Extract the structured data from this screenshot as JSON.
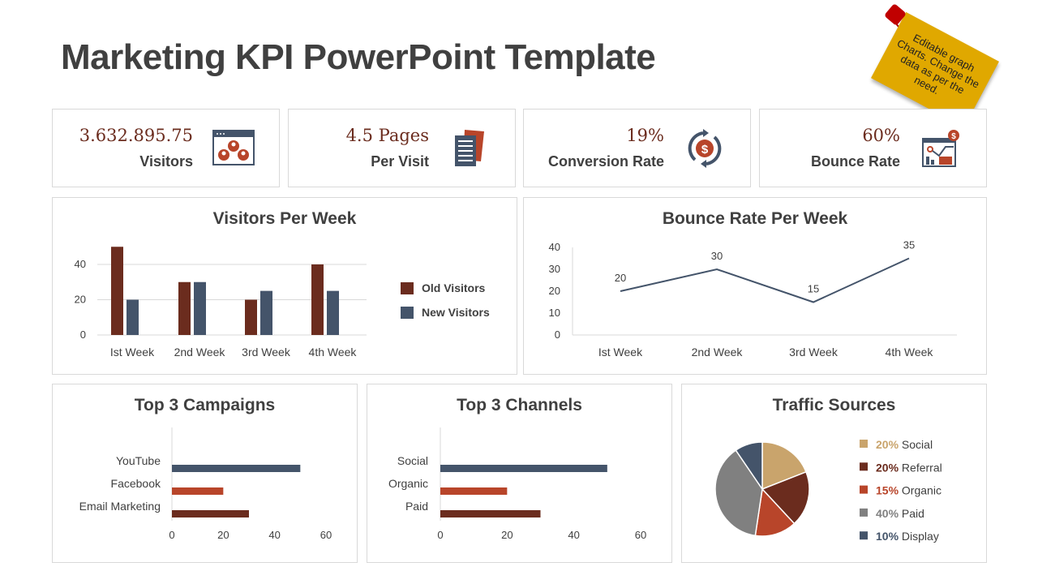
{
  "title": "Marketing KPI PowerPoint Template",
  "sticky_note": "Editable graph Charts. Change the data as per the need.",
  "kpis": [
    {
      "value": "3.632.895.75",
      "label": "Visitors",
      "icon": "visitors-browser-icon"
    },
    {
      "value": "4.5 Pages",
      "label": "Per Visit",
      "icon": "document-pages-icon"
    },
    {
      "value": "19%",
      "label": "Conversion Rate",
      "icon": "dollar-cycle-icon"
    },
    {
      "value": "60%",
      "label": "Bounce Rate",
      "icon": "analytics-dashboard-icon"
    }
  ],
  "colors": {
    "brown": "#6b2c1e",
    "navy": "#44546a",
    "orange": "#b8452a",
    "tan": "#c9a46c",
    "gray": "#808080"
  },
  "chart_data": [
    {
      "id": "visitors",
      "type": "bar",
      "title": "Visitors Per Week",
      "categories": [
        "Ist Week",
        "2nd Week",
        "3rd Week",
        "4th Week"
      ],
      "series": [
        {
          "name": "Old Visitors",
          "values": [
            50,
            30,
            20,
            40
          ],
          "color": "#6b2c1e"
        },
        {
          "name": "New Visitors",
          "values": [
            20,
            30,
            25,
            25
          ],
          "color": "#44546a"
        }
      ],
      "yticks": [
        0,
        20,
        40
      ],
      "ylim": [
        0,
        50
      ],
      "legend": "right"
    },
    {
      "id": "bounce",
      "type": "line",
      "title": "Bounce Rate Per Week",
      "categories": [
        "Ist Week",
        "2nd Week",
        "3rd Week",
        "4th Week"
      ],
      "values": [
        20,
        30,
        15,
        35
      ],
      "yticks": [
        0,
        10,
        20,
        30,
        40
      ],
      "ylim": [
        0,
        40
      ],
      "color": "#44546a"
    },
    {
      "id": "campaigns",
      "type": "bar",
      "orientation": "horizontal",
      "title": "Top 3 Campaigns",
      "categories": [
        "YouTube",
        "Facebook",
        "Email Marketing"
      ],
      "values": [
        50,
        20,
        30
      ],
      "colors": [
        "#44546a",
        "#b8452a",
        "#6b2c1e"
      ],
      "xticks": [
        0,
        20,
        40,
        60
      ],
      "xlim": [
        0,
        60
      ]
    },
    {
      "id": "channels",
      "type": "bar",
      "orientation": "horizontal",
      "title": "Top 3 Channels",
      "categories": [
        "Social",
        "Organic",
        "Paid"
      ],
      "values": [
        50,
        20,
        30
      ],
      "colors": [
        "#44546a",
        "#b8452a",
        "#6b2c1e"
      ],
      "xticks": [
        0,
        20,
        40,
        60
      ],
      "xlim": [
        0,
        60
      ]
    },
    {
      "id": "traffic",
      "type": "pie",
      "title": "Traffic Sources",
      "slices": [
        {
          "label": "Social",
          "pct": "20%",
          "value": 20,
          "color": "#c9a46c"
        },
        {
          "label": "Referral",
          "pct": "20%",
          "value": 20,
          "color": "#6b2c1e"
        },
        {
          "label": "Organic",
          "pct": "15%",
          "value": 15,
          "color": "#b8452a"
        },
        {
          "label": "Paid",
          "pct": "40%",
          "value": 40,
          "color": "#808080"
        },
        {
          "label": "Display",
          "pct": "10%",
          "value": 10,
          "color": "#44546a"
        }
      ]
    }
  ]
}
